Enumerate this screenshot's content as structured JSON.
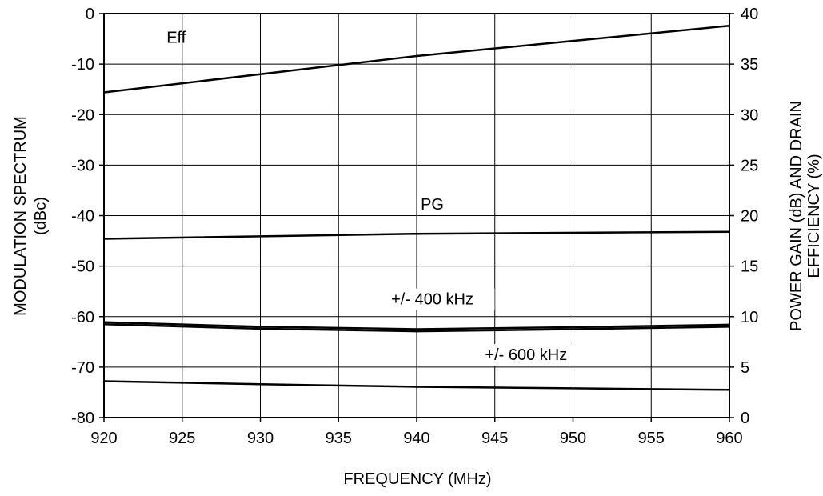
{
  "chart_data": {
    "type": "line",
    "title": "",
    "xlabel": "FREQUENCY (MHz)",
    "ylabel_left": [
      "MODULATION SPECTRUM",
      "(dBc)"
    ],
    "ylabel_right": [
      "POWER GAIN (dB) AND DRAIN",
      "EFFICIENCY (%)"
    ],
    "xlim": [
      920,
      960
    ],
    "ylim_left": [
      -80,
      0
    ],
    "ylim_right": [
      0,
      40
    ],
    "grid": true,
    "x_ticks": [
      "920",
      "925",
      "930",
      "935",
      "940",
      "945",
      "950",
      "955",
      "960"
    ],
    "y_left_ticks": [
      "0",
      "-10",
      "-20",
      "-30",
      "-40",
      "-50",
      "-60",
      "-70",
      "-80"
    ],
    "y_right_ticks": [
      "40",
      "35",
      "30",
      "25",
      "20",
      "15",
      "10",
      "5",
      "0"
    ],
    "series": [
      {
        "name": "Eff",
        "axis": "right",
        "x": [
          920,
          940,
          960
        ],
        "y": [
          32.2,
          35.8,
          38.8
        ]
      },
      {
        "name": "PG",
        "axis": "right",
        "x": [
          920,
          940,
          960
        ],
        "y": [
          17.7,
          18.2,
          18.4
        ]
      },
      {
        "name": "+/- 400 kHz",
        "axis": "left",
        "x": [
          920,
          930,
          940,
          950,
          960
        ],
        "y": [
          -61.1,
          -62.0,
          -62.5,
          -62.1,
          -61.6
        ]
      },
      {
        "name": "",
        "axis": "left",
        "x": [
          920,
          930,
          940,
          950,
          960
        ],
        "y": [
          -61.5,
          -62.4,
          -62.9,
          -62.5,
          -62.0
        ]
      },
      {
        "name": "+/- 600 kHz",
        "axis": "left",
        "x": [
          920,
          930,
          940,
          950,
          960
        ],
        "y": [
          -72.8,
          -73.4,
          -73.9,
          -74.2,
          -74.5
        ]
      }
    ]
  }
}
